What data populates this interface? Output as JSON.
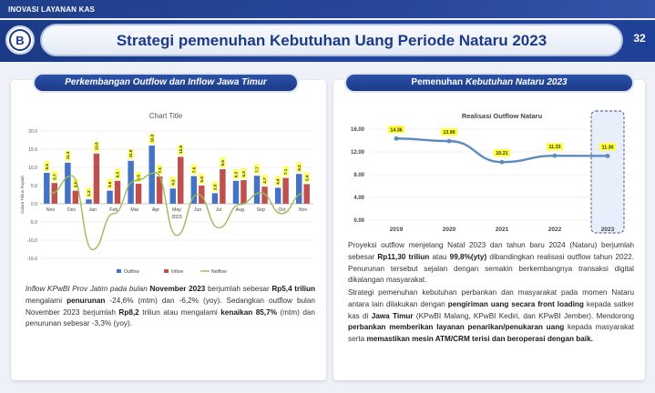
{
  "header": {
    "section_label": "INOVASI LAYANAN KAS",
    "page_number": "32",
    "title": "Strategi pemenuhan Kebutuhan Uang Periode Nataru 2023"
  },
  "left_panel": {
    "heading": "Perkembangan Outflow dan Inflow Jawa Timur",
    "paragraph": {
      "p1": "Inflow KPwBI Prov Jatim pada bulan ",
      "p2": "November 2023",
      "p3": " berjumlah sebesar ",
      "p4": "Rp5,4 triliun",
      "p5": " mengalami ",
      "p6": "penurunan",
      "p7": " -24,6% (mtm) dan -6,2% (yoy). Sedangkan outflow bulan November 2023 berjumlah ",
      "p8": "Rp8,2",
      "p9": " triliun atau mengalami ",
      "p10": "kenaikan 85,7%",
      "p11": " (mtm) dan penurunan sebesar -3,3% (yoy)."
    }
  },
  "right_panel": {
    "heading_pre": "Pemenuhan ",
    "heading_em": "Kebutuhan Nataru 2023",
    "paragraph1": {
      "a": "Proyeksi outflow menjelang Natal 2023 dan tahun baru 2024 (Nataru) berjumlah sebesar ",
      "b": "Rp11,30 triliun",
      "c": " atau ",
      "d": "99,8%(yty)",
      "e": " dibandingkan realisasi outflow tahun 2022. Penurunan tersebut sejalan dengan semakin berkembangnya transaksi digital dikalangan masyarakat."
    },
    "paragraph2": {
      "a": "Strategi pemenuhan kebutuhan perbankan dan masyarakat pada momen Nataru antara lain dilakukan dengan ",
      "b": "pengiriman uang secara front loading",
      "c": " kepada satker kas di ",
      "d": "Jawa Timur",
      "e": " (KPwBI Malang, KPwBI Kediri, dan KPwBI Jember). Mendorong ",
      "f": "perbankan memberikan layanan penarikan/penukaran uang",
      "g": " kepada masyarakat serta ",
      "h": "memastikan mesin ATM/CRM terisi dan beroperasi dengan baik."
    }
  },
  "chart_data": [
    {
      "type": "bar",
      "title": "Chart Title",
      "ylabel": "Dalam Triliun Rupiah",
      "xlabel": "2023",
      "ylim": [
        -15,
        20
      ],
      "yticks": [
        "20.0",
        "15.0",
        "10.0",
        "5.0",
        "0.0",
        "-5.0",
        "-10.0",
        "-15.0"
      ],
      "categories": [
        "Nov",
        "Dec",
        "Jan",
        "Feb",
        "Mar",
        "Apr",
        "May",
        "Jun",
        "Jul",
        "Aug",
        "Sep",
        "Oct",
        "Nov"
      ],
      "series": [
        {
          "name": "Outflow",
          "color": "#4472c4",
          "values": [
            8.5,
            11.3,
            1.2,
            3.6,
            11.8,
            16.0,
            4.2,
            7.6,
            2.9,
            6.3,
            7.7,
            4.4,
            8.2
          ],
          "labels": [
            "8.5",
            "11.3",
            "1.2",
            "3.6",
            "11.8",
            "16.0",
            "4.2",
            "7.6",
            "2.9",
            "6.3",
            "7.7",
            "4.4",
            "8.2"
          ]
        },
        {
          "name": "Inflow",
          "color": "#c0504d",
          "values": [
            5.7,
            3.6,
            13.8,
            6.3,
            5.5,
            7.5,
            12.9,
            5.0,
            9.5,
            6.5,
            4.7,
            7.1,
            5.4
          ],
          "labels": [
            "5.7",
            "3.6",
            "13.8",
            "6.3",
            "5.5",
            "7.5",
            "12.9",
            "5.0",
            "9.5",
            "6.5",
            "4.7",
            "7.1",
            "5.4"
          ]
        },
        {
          "name": "Netflow",
          "color": "#9bbb59",
          "type": "line",
          "values": [
            2.8,
            7.7,
            -12.6,
            -2.7,
            6.3,
            8.5,
            -8.7,
            2.6,
            -6.6,
            -0.2,
            3.0,
            -2.7,
            2.8
          ]
        }
      ],
      "legend": "bottom"
    },
    {
      "type": "line",
      "title": "Realisasi Outflow Nataru",
      "x": [
        "2019",
        "2020",
        "2021",
        "2022",
        "2023"
      ],
      "yticks": [
        "16.00",
        "12.00",
        "8.00",
        "4.00",
        "0.00"
      ],
      "ylim": [
        0,
        16
      ],
      "series": [
        {
          "color": "#5b8cbd",
          "values": [
            14.36,
            13.9,
            10.21,
            11.33,
            11.3
          ],
          "labels": [
            "14.36",
            "13.90",
            "10.21",
            "11.33",
            "11.30"
          ]
        }
      ],
      "highlight": "2023"
    }
  ]
}
